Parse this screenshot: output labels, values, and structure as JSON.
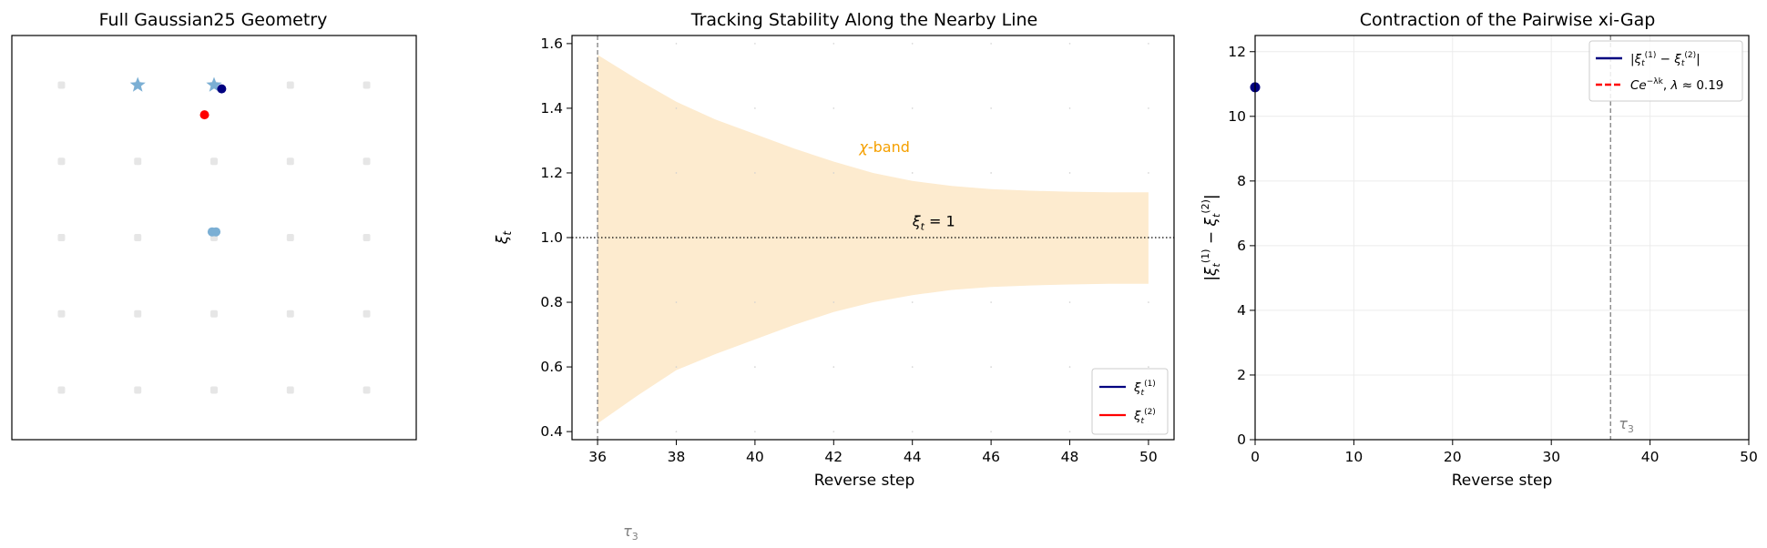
{
  "chart_data": [
    {
      "type": "scatter",
      "title": "Full Gaussian25 Geometry",
      "xlabel": "",
      "ylabel": "",
      "axes_visible": false,
      "xlim": [
        -5.3,
        5.3
      ],
      "ylim": [
        -5.3,
        5.3
      ],
      "grid_points": {
        "x": [
          -4,
          -2,
          0,
          2,
          4
        ],
        "y": [
          -4,
          -2,
          0,
          2,
          4
        ],
        "color": "#e6e6e6"
      },
      "stars": {
        "points": [
          [
            -2,
            4
          ],
          [
            0,
            4
          ]
        ],
        "color": "#7bafd4"
      },
      "points": [
        {
          "x": 0.2,
          "y": 3.9,
          "color": "#000080"
        },
        {
          "x": -0.25,
          "y": 3.22,
          "color": "#ff0000"
        },
        {
          "x": -0.05,
          "y": 0.15,
          "color": "#7bafd4"
        },
        {
          "x": 0.05,
          "y": 0.15,
          "color": "#7bafd4"
        }
      ]
    },
    {
      "type": "area",
      "title": "Tracking Stability Along the Nearby Line",
      "xlabel": "Reverse step",
      "ylabel": "ξ_t",
      "xlim": [
        35.35,
        50.65
      ],
      "ylim": [
        0.375,
        1.625
      ],
      "xticks": [
        36,
        38,
        40,
        42,
        44,
        46,
        48,
        50
      ],
      "yticks": [
        0.4,
        0.6,
        0.8,
        1.0,
        1.2,
        1.4,
        1.6
      ],
      "band": {
        "label": "x-band",
        "color": "#fdebcf",
        "x": [
          36,
          37,
          38,
          39,
          40,
          41,
          42,
          43,
          44,
          45,
          46,
          47,
          48,
          49,
          50
        ],
        "upper": [
          1.565,
          1.49,
          1.42,
          1.365,
          1.32,
          1.275,
          1.235,
          1.2,
          1.175,
          1.16,
          1.15,
          1.145,
          1.142,
          1.14,
          1.14
        ],
        "lower": [
          0.425,
          0.51,
          0.59,
          0.64,
          0.685,
          0.73,
          0.77,
          0.8,
          0.822,
          0.838,
          0.847,
          0.852,
          0.855,
          0.857,
          0.857
        ]
      },
      "reference_line": {
        "y": 1.0,
        "label": "ξ_t = 1"
      },
      "tau_line": {
        "x": 36,
        "label": "τ_3"
      },
      "series": [
        {
          "name": "ξ_t^(1)",
          "color": "#000080",
          "x": [],
          "y": []
        },
        {
          "name": "ξ_t^(2)",
          "color": "#ff0000",
          "x": [],
          "y": []
        }
      ],
      "legend": "lower-right"
    },
    {
      "type": "line",
      "title": "Contraction of the Pairwise xi-Gap",
      "xlabel": "Reverse step",
      "ylabel": "|ξ_t^(1) − ξ_t^(2)|",
      "xlim": [
        0,
        50
      ],
      "ylim": [
        0,
        12.5
      ],
      "xticks": [
        0,
        10,
        20,
        30,
        40,
        50
      ],
      "yticks": [
        0,
        2,
        4,
        6,
        8,
        10,
        12
      ],
      "grid": true,
      "tau_line": {
        "x": 36,
        "label": "τ_3"
      },
      "series": [
        {
          "name": "|ξ_t^(1) − ξ_t^(2)|",
          "color": "#000080",
          "style": "solid",
          "x": [
            0
          ],
          "y": [
            10.9
          ]
        },
        {
          "name": "Ce^(−λk), λ ≈ 0.19",
          "color": "#ff0000",
          "style": "dashed",
          "x": [],
          "y": []
        }
      ],
      "legend": "top-right"
    }
  ]
}
